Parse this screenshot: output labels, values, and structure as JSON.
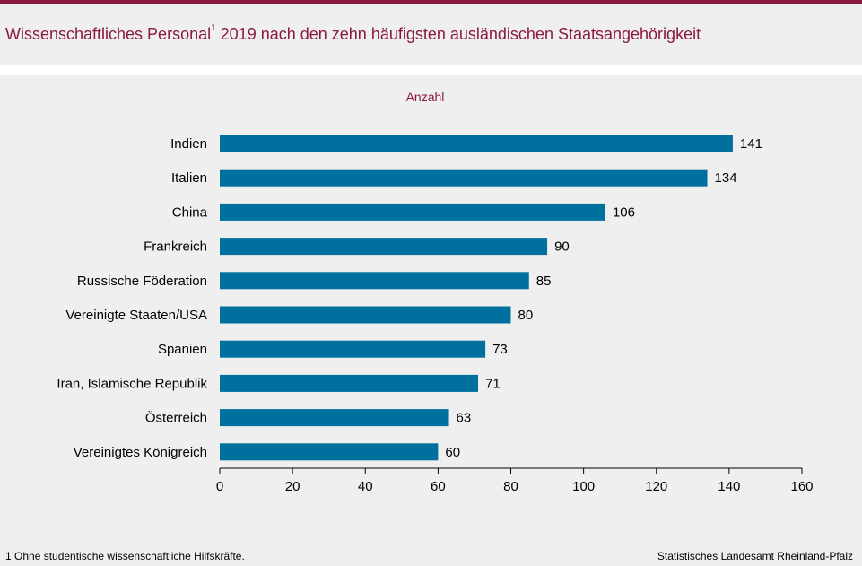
{
  "header": {
    "title": "Wissenschaftliches Personal",
    "title_sup": "1",
    "title_rest": " 2019 nach den zehn häufigsten ausländischen Staatsangehörigkeit"
  },
  "footer": {
    "footnote": "1 Ohne studentische wissenschaftliche Hilfskräfte.",
    "source": "Statistisches Landesamt Rheinland-Pfalz"
  },
  "colors": {
    "brand": "#8a1b3c",
    "bar": "#00719e",
    "background": "#efefef"
  },
  "chart_data": {
    "type": "bar",
    "orientation": "horizontal",
    "unit_label": "Anzahl",
    "categories": [
      "Indien",
      "Italien",
      "China",
      "Frankreich",
      "Russische Föderation",
      "Vereinigte Staaten/USA",
      "Spanien",
      "Iran, Islamische Republik",
      "Österreich",
      "Vereinigtes Königreich"
    ],
    "values": [
      141,
      134,
      106,
      90,
      85,
      80,
      73,
      71,
      63,
      60
    ],
    "xlim": [
      0,
      160
    ],
    "xticks": [
      0,
      20,
      40,
      60,
      80,
      100,
      120,
      140,
      160
    ],
    "grid": false,
    "data_labels": true
  }
}
